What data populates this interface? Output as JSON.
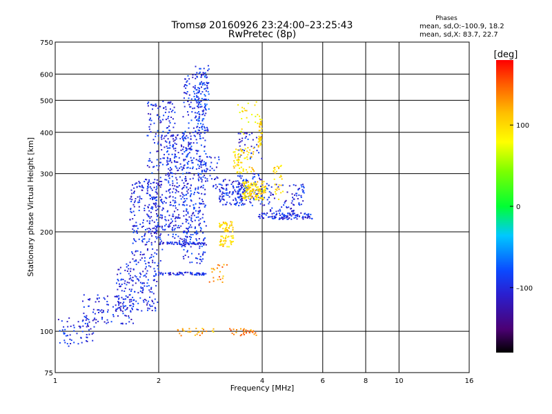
{
  "header": {
    "title": "Tromsø 20160926 23:24:00–23:25:43",
    "subtitle": "RwPretec (8p)"
  },
  "phases_box": {
    "heading": "Phases",
    "line_o": "mean, sd,O:–100.9, 18.2",
    "line_x": "mean, sd,X:  83.7, 22.7"
  },
  "colorbar": {
    "title": "[deg]",
    "ticks": [
      "100",
      "0",
      "–100"
    ],
    "tick_values": [
      100,
      0,
      -100
    ],
    "range": [
      -180,
      180
    ]
  },
  "chart_data": {
    "type": "scatter",
    "xlabel": "Frequency [MHz]",
    "ylabel": "Stationary phase Virtual Height [km]",
    "xscale": "log",
    "yscale": "log",
    "xlim": [
      1,
      16
    ],
    "ylim": [
      75,
      750
    ],
    "xticks": [
      1,
      2,
      4,
      6,
      8,
      10,
      16
    ],
    "yticks": [
      75,
      100,
      200,
      300,
      400,
      500,
      600,
      750
    ],
    "grid": true,
    "color_by": "phase [deg]",
    "clusters": [
      {
        "x": [
          1.0,
          1.3
        ],
        "y": [
          90,
          110
        ],
        "phase": -100,
        "count": 60
      },
      {
        "x": [
          1.2,
          1.7
        ],
        "y": [
          105,
          130
        ],
        "phase": -100,
        "count": 110
      },
      {
        "x": [
          1.5,
          2.0
        ],
        "y": [
          115,
          160
        ],
        "phase": -100,
        "count": 160
      },
      {
        "x": [
          1.65,
          2.05
        ],
        "y": [
          160,
          290
        ],
        "phase": -100,
        "count": 220
      },
      {
        "x": [
          1.85,
          2.25
        ],
        "y": [
          200,
          500
        ],
        "phase": -100,
        "count": 260
      },
      {
        "x": [
          2.1,
          2.5
        ],
        "y": [
          180,
          400
        ],
        "phase": -100,
        "count": 200
      },
      {
        "x": [
          2.35,
          2.75
        ],
        "y": [
          160,
          600
        ],
        "phase": -95,
        "count": 320
      },
      {
        "x": [
          2.55,
          2.8
        ],
        "y": [
          400,
          640
        ],
        "phase": -90,
        "count": 120
      },
      {
        "x": [
          2.0,
          2.75
        ],
        "y": [
          183,
          186
        ],
        "phase": -100,
        "count": 60
      },
      {
        "x": [
          2.0,
          2.75
        ],
        "y": [
          148,
          151
        ],
        "phase": -100,
        "count": 60
      },
      {
        "x": [
          2.6,
          3.0
        ],
        "y": [
          270,
          340
        ],
        "phase": -100,
        "count": 60
      },
      {
        "x": [
          3.0,
          3.6
        ],
        "y": [
          240,
          290
        ],
        "phase": -100,
        "count": 110
      },
      {
        "x": [
          3.4,
          4.0
        ],
        "y": [
          240,
          300
        ],
        "phase": -95,
        "count": 90
      },
      {
        "x": [
          3.4,
          4.0
        ],
        "y": [
          330,
          400
        ],
        "phase": -100,
        "count": 40
      },
      {
        "x": [
          3.9,
          5.6
        ],
        "y": [
          218,
          228
        ],
        "phase": -100,
        "count": 110
      },
      {
        "x": [
          4.0,
          5.0
        ],
        "y": [
          230,
          280
        ],
        "phase": -100,
        "count": 60
      },
      {
        "x": [
          5.0,
          5.3
        ],
        "y": [
          240,
          280
        ],
        "phase": -100,
        "count": 25
      },
      {
        "x": [
          3.5,
          4.1
        ],
        "y": [
          250,
          285
        ],
        "phase": 100,
        "count": 130
      },
      {
        "x": [
          3.3,
          3.8
        ],
        "y": [
          300,
          360
        ],
        "phase": 100,
        "count": 70
      },
      {
        "x": [
          3.9,
          4.0
        ],
        "y": [
          360,
          440
        ],
        "phase": 110,
        "count": 40
      },
      {
        "x": [
          3.0,
          3.3
        ],
        "y": [
          200,
          215
        ],
        "phase": 100,
        "count": 40
      },
      {
        "x": [
          3.0,
          3.3
        ],
        "y": [
          180,
          195
        ],
        "phase": 100,
        "count": 40
      },
      {
        "x": [
          3.4,
          4.0
        ],
        "y": [
          395,
          500
        ],
        "phase": 90,
        "count": 25
      },
      {
        "x": [
          4.3,
          4.6
        ],
        "y": [
          250,
          320
        ],
        "phase": 100,
        "count": 30
      },
      {
        "x": [
          3.2,
          4.0
        ],
        "y": [
          97,
          102
        ],
        "phase": 140,
        "count": 30
      },
      {
        "x": [
          2.2,
          2.9
        ],
        "y": [
          97,
          102
        ],
        "phase": 120,
        "count": 25
      },
      {
        "x": [
          2.8,
          3.2
        ],
        "y": [
          140,
          160
        ],
        "phase": 130,
        "count": 20
      }
    ]
  }
}
